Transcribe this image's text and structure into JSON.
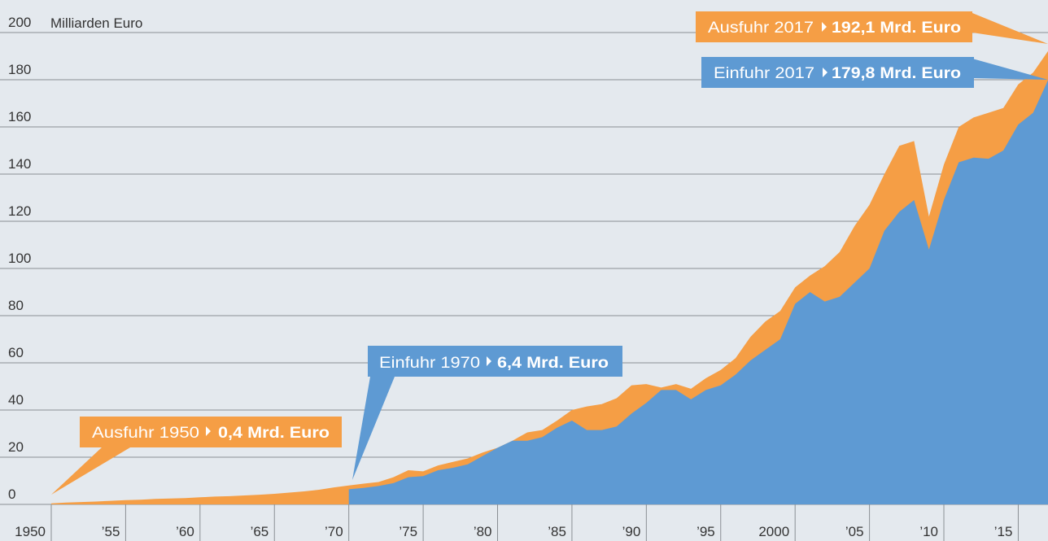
{
  "chart_data": {
    "type": "area",
    "y_axis_label": "Milliarden Euro",
    "x": [
      1950,
      1951,
      1952,
      1953,
      1954,
      1955,
      1956,
      1957,
      1958,
      1959,
      1960,
      1961,
      1962,
      1963,
      1964,
      1965,
      1966,
      1967,
      1968,
      1969,
      1970,
      1971,
      1972,
      1973,
      1974,
      1975,
      1976,
      1977,
      1978,
      1979,
      1980,
      1981,
      1982,
      1983,
      1984,
      1985,
      1986,
      1987,
      1988,
      1989,
      1990,
      1991,
      1992,
      1993,
      1994,
      1995,
      1996,
      1997,
      1998,
      1999,
      2000,
      2001,
      2002,
      2003,
      2004,
      2005,
      2006,
      2007,
      2008,
      2009,
      2010,
      2011,
      2012,
      2013,
      2014,
      2015,
      2016,
      2017
    ],
    "series": [
      {
        "name": "Ausfuhr",
        "color": "#f59e45",
        "values": [
          0.4,
          0.8,
          1.0,
          1.2,
          1.5,
          1.8,
          2.0,
          2.3,
          2.5,
          2.7,
          3.0,
          3.3,
          3.5,
          3.8,
          4.1,
          4.5,
          5.0,
          5.5,
          6.2,
          7.2,
          8.0,
          8.8,
          9.5,
          11.5,
          14.5,
          14.0,
          16.5,
          18,
          19.5,
          22,
          24,
          27,
          30.5,
          31.5,
          35.5,
          40,
          41.5,
          42.5,
          45,
          50.5,
          51,
          49.5,
          51,
          49,
          53.5,
          57,
          62,
          71,
          77.5,
          82,
          92,
          97,
          101,
          107,
          118,
          127,
          140,
          152,
          154,
          122,
          144,
          160,
          164,
          166,
          168,
          178,
          183,
          192.1
        ]
      },
      {
        "name": "Einfuhr",
        "color": "#5e9ad3",
        "values": [
          null,
          null,
          null,
          null,
          null,
          null,
          null,
          null,
          null,
          null,
          null,
          null,
          null,
          null,
          null,
          null,
          null,
          null,
          null,
          null,
          6.4,
          7,
          7.8,
          9,
          11.5,
          12,
          14.5,
          15.5,
          17,
          20.5,
          24,
          27,
          27,
          28.5,
          32.5,
          35.5,
          31.5,
          31.5,
          33,
          38.5,
          43,
          48.5,
          48.5,
          44.5,
          48.5,
          50.5,
          55,
          61,
          65.5,
          70,
          85,
          90,
          86,
          88,
          94,
          100,
          116,
          124,
          129,
          108,
          129,
          145,
          147,
          146.5,
          150,
          161,
          166,
          179.8
        ]
      }
    ],
    "annotations": [
      {
        "text": "Ausfuhr 1950",
        "value_label": "0,4 Mrd. Euro"
      },
      {
        "text": "Einfuhr 1970",
        "value_label": "6,4 Mrd. Euro"
      },
      {
        "text": "Ausfuhr 2017",
        "value_label": "192,1 Mrd. Euro"
      },
      {
        "text": "Einfuhr 2017",
        "value_label": "179,8 Mrd. Euro"
      }
    ],
    "xlim": [
      1950,
      2017
    ],
    "ylim": [
      0,
      200
    ],
    "yticks": [
      0,
      20,
      40,
      60,
      80,
      100,
      120,
      140,
      160,
      180,
      200
    ],
    "xticks": [
      1950,
      {
        "value": 1955,
        "label": "’55"
      },
      {
        "value": 1960,
        "label": "’60"
      },
      {
        "value": 1965,
        "label": "’65"
      },
      {
        "value": 1970,
        "label": "’70"
      },
      {
        "value": 1975,
        "label": "’75"
      },
      {
        "value": 1980,
        "label": "’80"
      },
      {
        "value": 1985,
        "label": "’85"
      },
      {
        "value": 1990,
        "label": "’90"
      },
      {
        "value": 1995,
        "label": "’95"
      },
      2000,
      {
        "value": 2005,
        "label": "’05"
      },
      {
        "value": 2010,
        "label": "’10"
      },
      {
        "value": 2015,
        "label": "’15"
      }
    ],
    "grid": true
  }
}
